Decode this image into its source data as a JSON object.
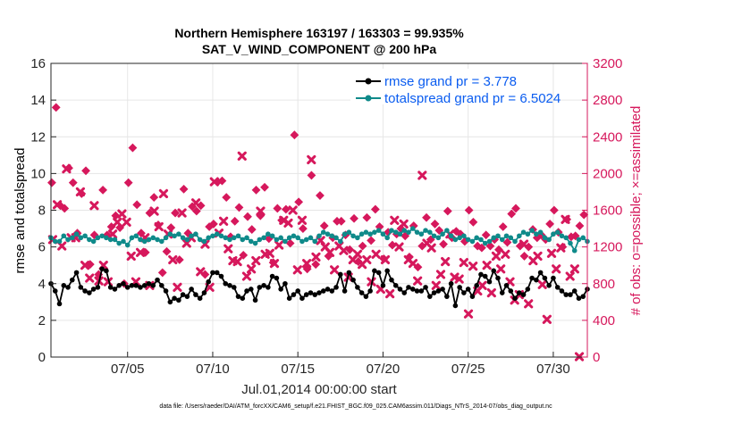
{
  "chart_data": {
    "type": "line",
    "title": "Northern Hemisphere 163197 / 163303 = 99.935%",
    "subtitle": "SAT_V_WIND_COMPONENT @ 200 hPa",
    "xlabel": "Jul.01,2014 00:00:00 start",
    "ylabel_left": "rmse and totalspread",
    "ylabel_right": "# of obs: o=possible; ×=assimilated",
    "footer": "data file: /Users/raeder/DAI/ATM_forcXX/CAM6_setup/f.e21.FHIST_BGC.f09_025.CAM6assim.011/Diags_NTrS_2014-07/obs_diag_output.nc",
    "x_range_days": [
      0.5,
      32
    ],
    "ylim_left": [
      0,
      16
    ],
    "ylim_right": [
      0,
      3200
    ],
    "left_ticks": [
      0,
      2,
      4,
      6,
      8,
      10,
      12,
      14,
      16
    ],
    "right_ticks": [
      0,
      400,
      800,
      1200,
      1600,
      2000,
      2400,
      2800,
      3200
    ],
    "x_ticks": [
      {
        "day": 5,
        "label": "07/05"
      },
      {
        "day": 10,
        "label": "07/10"
      },
      {
        "day": 15,
        "label": "07/15"
      },
      {
        "day": 20,
        "label": "07/20"
      },
      {
        "day": 25,
        "label": "07/25"
      },
      {
        "day": 30,
        "label": "07/30"
      }
    ],
    "start_day": 0.5,
    "step_days": 0.25,
    "series": [
      {
        "name": "rmse grand pr = 3.778",
        "color": "#000000",
        "marker": "circle",
        "values": [
          4.0,
          3.6,
          2.9,
          3.9,
          3.8,
          4.2,
          4.6,
          3.8,
          3.6,
          3.5,
          3.7,
          3.8,
          4.8,
          4.7,
          3.8,
          3.7,
          3.9,
          4.0,
          3.8,
          3.9,
          3.9,
          3.8,
          3.9,
          4.0,
          3.9,
          4.2,
          3.9,
          3.6,
          3.0,
          3.2,
          3.1,
          3.4,
          3.3,
          3.7,
          3.4,
          3.2,
          3.5,
          4.1,
          4.6,
          4.6,
          4.4,
          4.0,
          3.9,
          3.8,
          3.3,
          3.2,
          3.6,
          3.7,
          3.1,
          3.8,
          3.9,
          3.8,
          4.4,
          4.3,
          3.7,
          4.0,
          3.2,
          3.4,
          3.6,
          3.2,
          3.4,
          3.5,
          3.4,
          3.5,
          3.6,
          3.7,
          3.6,
          3.8,
          4.5,
          3.6,
          4.6,
          4.2,
          3.8,
          3.5,
          3.3,
          3.6,
          4.7,
          4.6,
          3.9,
          4.7,
          4.2,
          3.9,
          3.7,
          3.5,
          3.8,
          3.7,
          3.6,
          3.6,
          3.8,
          3.3,
          3.5,
          3.6,
          3.7,
          3.3,
          4.0,
          2.8,
          3.8,
          3.5,
          3.7,
          3.3,
          3.9,
          4.5,
          4.4,
          4.1,
          4.7,
          4.3,
          3.5,
          3.9,
          3.6,
          3.2,
          3.5,
          3.4,
          3.7,
          4.3,
          4.2,
          4.6,
          4.3,
          3.9,
          4.3,
          3.8,
          3.6,
          3.4,
          3.4,
          3.6,
          3.2,
          3.3,
          3.7,
          3.4,
          3.7,
          3.8,
          3.7,
          3.3,
          3.5,
          3.9,
          3.5,
          3.7,
          3.3,
          3.7,
          4.4,
          5.0,
          3.6,
          3.8,
          4.6,
          4.0,
          4.3,
          3.6,
          3.6,
          3.7,
          3.4,
          3.1
        ],
        "fill": "#000000"
      },
      {
        "name": "totalspread grand pr = 6.5024",
        "color": "#0f8a8a",
        "marker": "circle",
        "values": [
          6.5,
          6.3,
          6.3,
          6.6,
          6.4,
          6.5,
          6.7,
          6.5,
          6.6,
          6.4,
          6.3,
          6.5,
          6.6,
          6.5,
          6.4,
          6.4,
          6.2,
          6.3,
          6.1,
          6.5,
          6.6,
          6.4,
          6.3,
          6.4,
          6.5,
          6.4,
          6.3,
          6.5,
          6.7,
          6.6,
          6.7,
          6.5,
          6.4,
          6.6,
          6.7,
          6.4,
          6.3,
          6.5,
          6.6,
          6.7,
          6.6,
          6.5,
          6.4,
          6.5,
          6.6,
          6.4,
          6.5,
          6.3,
          6.2,
          6.4,
          6.5,
          6.7,
          6.6,
          6.4,
          6.5,
          6.3,
          6.5,
          6.6,
          6.5,
          6.3,
          6.4,
          6.5,
          6.3,
          6.6,
          6.8,
          6.7,
          6.6,
          6.5,
          6.3,
          6.7,
          6.8,
          6.6,
          6.5,
          6.7,
          6.8,
          6.7,
          6.8,
          6.9,
          6.7,
          6.5,
          6.9,
          6.8,
          6.7,
          6.9,
          6.8,
          7.0,
          6.8,
          6.7,
          6.9,
          6.8,
          6.6,
          6.5,
          6.7,
          6.9,
          6.6,
          6.4,
          6.5,
          6.6,
          6.4,
          6.3,
          6.5,
          6.4,
          6.2,
          6.3,
          6.5,
          6.6,
          6.4,
          6.6,
          6.5,
          6.3,
          6.6,
          6.8,
          6.7,
          6.9,
          6.7,
          6.8,
          6.5,
          6.4,
          6.7,
          6.8,
          6.6,
          6.5,
          6.2,
          5.8,
          6.4,
          6.5,
          6.3,
          6.6,
          6.4,
          6.5,
          6.7,
          6.6,
          6.8,
          6.6,
          6.5,
          6.4,
          6.7,
          6.8,
          6.9,
          6.8,
          6.7,
          6.5,
          6.2,
          6.9,
          5.9,
          6.6,
          6.8,
          6.7,
          6.9,
          7.0,
          6.8,
          6.9
        ],
        "fill": "#0f8a8a"
      }
    ],
    "obs_possible": {
      "name": "possible",
      "color": "#d6185c",
      "values": [
        1900,
        2720,
        1650,
        1620,
        2060,
        1900,
        1350,
        1780,
        2030,
        1010,
        1330,
        900,
        1820,
        1330,
        1420,
        1540,
        1410,
        800,
        1900,
        2280,
        1660,
        1350,
        1140,
        1570,
        1740,
        1440,
        920,
        1150,
        1410,
        1570,
        1060,
        1830,
        1350,
        1640,
        1590,
        1650,
        900,
        1420,
        1450,
        1910,
        1920,
        1740,
        1310,
        1480,
        1630,
        1110,
        1530,
        1390,
        1820,
        1540,
        1850,
        1290,
        1030,
        1620,
        1490,
        1610,
        1240,
        2420,
        1690,
        1400,
        960,
        1980,
        1010,
        1760,
        1430,
        1100,
        1300,
        1480,
        1480,
        1330,
        1170,
        1510,
        1040,
        1210,
        1520,
        1270,
        1610,
        1420,
        1070,
        1360,
        1220,
        1340,
        1400,
        1320,
        1090,
        1430,
        980,
        1210,
        1520,
        1280,
        1450,
        1380,
        1230,
        1590,
        1300,
        1370,
        1340,
        1260,
        1600,
        1470,
        1210,
        1190,
        1330,
        1210,
        1280,
        1170,
        1420,
        1250,
        1560,
        1620,
        1210,
        1100,
        1200,
        1390,
        1300,
        1330,
        1280,
        1450,
        1600,
        1360,
        1200,
        1500,
        1310,
        1320,
        1430,
        1550,
        1290,
        1160,
        1370,
        1290,
        1280,
        1270,
        1230,
        1260,
        1310,
        1420,
        1330,
        1270,
        1240,
        1160,
        1360,
        1290,
        1220,
        1370,
        1200,
        1180,
        1370
      ],
      "marker": "diamond"
    },
    "obs_assimilated": {
      "name": "assimilated",
      "color": "#d6185c",
      "values": [
        1280,
        1660,
        1210,
        2050,
        1300,
        1300,
        1800,
        1000,
        860,
        1650,
        830,
        1000,
        820,
        1340,
        1470,
        1560,
        1470,
        1100,
        820,
        1140,
        1300,
        780,
        1590,
        1420,
        1780,
        1340,
        1060,
        760,
        1570,
        1240,
        1300,
        1680,
        930,
        1230,
        760,
        1910,
        1350,
        1480,
        1180,
        1050,
        1040,
        2190,
        880,
        960,
        1050,
        1590,
        1120,
        1130,
        1020,
        1220,
        1490,
        1460,
        1600,
        950,
        1490,
        1020,
        2150,
        1090,
        1270,
        1200,
        1140,
        950,
        1210,
        1160,
        870,
        1060,
        1120,
        1010,
        1060,
        820,
        1120,
        740,
        1060,
        690,
        1490,
        1200,
        1450,
        1060,
        1020,
        830,
        1980,
        1240,
        1190,
        780,
        900,
        1040,
        1340,
        870,
        850,
        1030,
        470,
        990,
        720,
        780,
        1000,
        700,
        1100,
        960,
        1120,
        820,
        620,
        680,
        1230,
        580,
        1050,
        1100,
        790,
        410,
        1130,
        960,
        1190,
        1500,
        880,
        960,
        4
      ],
      "marker": "x"
    },
    "legend_position": "top-right"
  }
}
